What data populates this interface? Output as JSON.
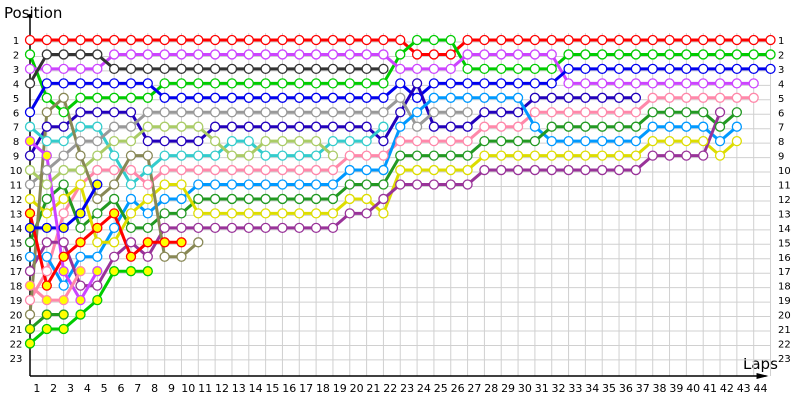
{
  "chart_data": {
    "type": "line",
    "title": "",
    "ylabel": "Position",
    "xlabel": "Laps",
    "x_range": [
      0,
      44
    ],
    "x_ticks": [
      "1",
      "2",
      "3",
      "4",
      "5",
      "6",
      "7",
      "8",
      "9",
      "10",
      "11",
      "12",
      "13",
      "14",
      "15",
      "16",
      "17",
      "18",
      "19",
      "20",
      "21",
      "22",
      "23",
      "24",
      "25",
      "26",
      "27",
      "28",
      "29",
      "30",
      "31",
      "32",
      "33",
      "34",
      "35",
      "36",
      "37",
      "38",
      "39",
      "40",
      "41",
      "42",
      "43",
      "44"
    ],
    "y_range": [
      1,
      23
    ],
    "y_inverted": true,
    "y_ticks": [
      "1",
      "2",
      "3",
      "4",
      "5",
      "6",
      "7",
      "8",
      "9",
      "10",
      "11",
      "12",
      "13",
      "14",
      "15",
      "16",
      "17",
      "18",
      "19",
      "20",
      "21",
      "22",
      "23"
    ],
    "grid": true,
    "grid_color": "#d0d0d0",
    "marker_fill_default": "#ffffff",
    "marker_fill_marked": "#ffff00",
    "series": [
      {
        "color": "#ff0000",
        "marked": false,
        "start_lap": 0,
        "positions": [
          1,
          1,
          1,
          1,
          1,
          1,
          1,
          1,
          1,
          1,
          1,
          1,
          1,
          1,
          1,
          1,
          1,
          1,
          1,
          1,
          1,
          1,
          1,
          2,
          2,
          2,
          1,
          1,
          1,
          1,
          1,
          1,
          1,
          1,
          1,
          1,
          1,
          1,
          1,
          1,
          1,
          1,
          1,
          1,
          1
        ]
      },
      {
        "color": "#00cc00",
        "marked": false,
        "start_lap": 0,
        "positions": [
          2,
          5,
          6,
          5,
          5,
          5,
          5,
          5,
          4,
          4,
          4,
          4,
          4,
          4,
          4,
          4,
          4,
          4,
          4,
          4,
          4,
          4,
          2,
          1,
          1,
          1,
          3,
          3,
          3,
          3,
          3,
          3,
          2,
          2,
          2,
          2,
          2,
          2,
          2,
          2,
          2,
          2,
          2,
          2,
          2
        ]
      },
      {
        "color": "#cc44ff",
        "marked": false,
        "start_lap": 0,
        "positions": [
          3,
          3,
          3,
          3,
          3,
          2,
          2,
          2,
          2,
          2,
          2,
          2,
          2,
          2,
          2,
          2,
          2,
          2,
          2,
          2,
          2,
          2,
          3,
          3,
          3,
          3,
          2,
          2,
          2,
          2,
          2,
          2,
          4,
          4,
          4,
          4,
          4,
          4,
          4,
          4,
          4,
          4,
          4,
          4
        ]
      },
      {
        "color": "#333333",
        "marked": false,
        "start_lap": 0,
        "positions": [
          4,
          2,
          2,
          2,
          2,
          3,
          3,
          3,
          3,
          3,
          3,
          3,
          3,
          3,
          3,
          3,
          3,
          3,
          3,
          3,
          3,
          3
        ]
      },
      {
        "color": "#0000ee",
        "marked": false,
        "start_lap": 0,
        "positions": [
          6,
          4,
          4,
          4,
          4,
          4,
          4,
          4,
          5,
          5,
          5,
          5,
          5,
          5,
          5,
          5,
          5,
          5,
          5,
          5,
          5,
          5,
          4,
          5,
          4,
          4,
          4,
          4,
          4,
          4,
          4,
          4,
          3,
          3,
          3,
          3,
          3,
          3,
          3,
          3,
          3,
          3,
          3,
          3,
          3
        ]
      },
      {
        "color": "#2200bb",
        "marked": false,
        "start_lap": 0,
        "positions": [
          9,
          7,
          7,
          6,
          6,
          6,
          6,
          8,
          8,
          8,
          8,
          7,
          7,
          7,
          7,
          7,
          7,
          7,
          7,
          7,
          7,
          8,
          6,
          4,
          7,
          7,
          7,
          6,
          6,
          6,
          5,
          5,
          5,
          5,
          5,
          5,
          5
        ]
      },
      {
        "color": "#33cccc",
        "marked": false,
        "start_lap": 0,
        "positions": [
          7,
          8,
          8,
          7,
          7,
          9,
          11,
          10,
          9,
          9,
          9,
          9,
          8,
          8,
          9,
          9,
          9,
          9,
          8,
          8,
          8,
          7
        ]
      },
      {
        "color": "#999999",
        "marked": false,
        "start_lap": 0,
        "positions": [
          11,
          10,
          9,
          8,
          8,
          7,
          7,
          6,
          6,
          6,
          6,
          6,
          6,
          6,
          6,
          6,
          6,
          6,
          6,
          6,
          6,
          6,
          5,
          7,
          6,
          6,
          6
        ]
      },
      {
        "color": "#aacc66",
        "marked": false,
        "start_lap": 0,
        "positions": [
          10,
          11,
          10,
          10,
          9,
          8,
          8,
          7,
          7,
          7,
          7,
          8,
          9,
          9,
          8,
          8,
          8,
          8,
          9
        ]
      },
      {
        "color": "#ff88aa",
        "marked": false,
        "start_lap": 0,
        "positions": [
          19,
          17,
          13,
          11,
          10,
          10,
          10,
          11,
          10,
          10,
          10,
          10,
          10,
          10,
          10,
          10,
          10,
          10,
          10,
          9,
          9,
          9,
          8,
          8,
          8,
          8,
          8,
          7,
          7,
          7,
          6,
          6,
          6,
          6,
          6,
          6,
          6,
          5,
          5,
          5,
          5,
          5,
          5,
          5
        ]
      },
      {
        "color": "#0099ff",
        "marked": false,
        "start_lap": 0,
        "positions": [
          16,
          16,
          18,
          16,
          16,
          14,
          12,
          13,
          12,
          12,
          11,
          11,
          11,
          11,
          11,
          11,
          11,
          11,
          11,
          10,
          10,
          10,
          7,
          6,
          5,
          5,
          5,
          5,
          5,
          5,
          7,
          8,
          8,
          8,
          8,
          8,
          8,
          7,
          7,
          7,
          7,
          8,
          7
        ]
      },
      {
        "color": "#229922",
        "marked": false,
        "start_lap": 0,
        "positions": [
          15,
          12,
          11,
          14,
          13,
          12,
          14,
          14,
          13,
          13,
          12,
          12,
          12,
          12,
          12,
          12,
          12,
          12,
          12,
          11,
          11,
          11,
          9,
          9,
          9,
          9,
          9,
          8,
          8,
          8,
          8,
          7,
          7,
          7,
          7,
          7,
          7,
          6,
          6,
          6,
          6,
          7,
          6
        ]
      },
      {
        "color": "#dddd00",
        "marked": false,
        "start_lap": 0,
        "positions": [
          12,
          13,
          12,
          11,
          15,
          15,
          13,
          12,
          11,
          11,
          13,
          13,
          13,
          13,
          13,
          13,
          13,
          13,
          13,
          12,
          12,
          13,
          10,
          10,
          10,
          10,
          10,
          9,
          9,
          9,
          9,
          9,
          9,
          9,
          9,
          9,
          9,
          8,
          8,
          8,
          8,
          9,
          8
        ]
      },
      {
        "color": "#993399",
        "marked": false,
        "start_lap": 0,
        "positions": [
          17,
          15,
          15,
          18,
          18,
          16,
          15,
          16,
          14,
          14,
          14,
          14,
          14,
          14,
          14,
          14,
          14,
          14,
          14,
          13,
          13,
          12,
          11,
          11,
          11,
          11,
          11,
          10,
          10,
          10,
          10,
          10,
          10,
          10,
          10,
          10,
          10,
          9,
          9,
          9,
          9,
          6
        ]
      },
      {
        "color": "#888855",
        "marked": false,
        "start_lap": 0,
        "positions": [
          20,
          6,
          5,
          9,
          12,
          11,
          9,
          9,
          16,
          16,
          15
        ]
      },
      {
        "color": "#ff0000",
        "marked": true,
        "start_lap": 0,
        "positions": [
          13,
          18,
          16,
          15,
          14,
          13,
          16,
          15,
          15,
          15
        ]
      },
      {
        "color": "#0000ee",
        "marked": true,
        "start_lap": 0,
        "positions": [
          14,
          14,
          14,
          13,
          11
        ]
      },
      {
        "color": "#cc44ff",
        "marked": true,
        "start_lap": 0,
        "positions": [
          8,
          9,
          17,
          19,
          17
        ]
      },
      {
        "color": "#ff88aa",
        "marked": true,
        "start_lap": 0,
        "positions": [
          18,
          19,
          19,
          17
        ]
      },
      {
        "color": "#229922",
        "marked": true,
        "start_lap": 0,
        "positions": [
          21,
          20,
          20
        ]
      },
      {
        "color": "#00cc00",
        "marked": true,
        "start_lap": 0,
        "positions": [
          22,
          21,
          21,
          20,
          19,
          17,
          17,
          17
        ]
      }
    ]
  }
}
